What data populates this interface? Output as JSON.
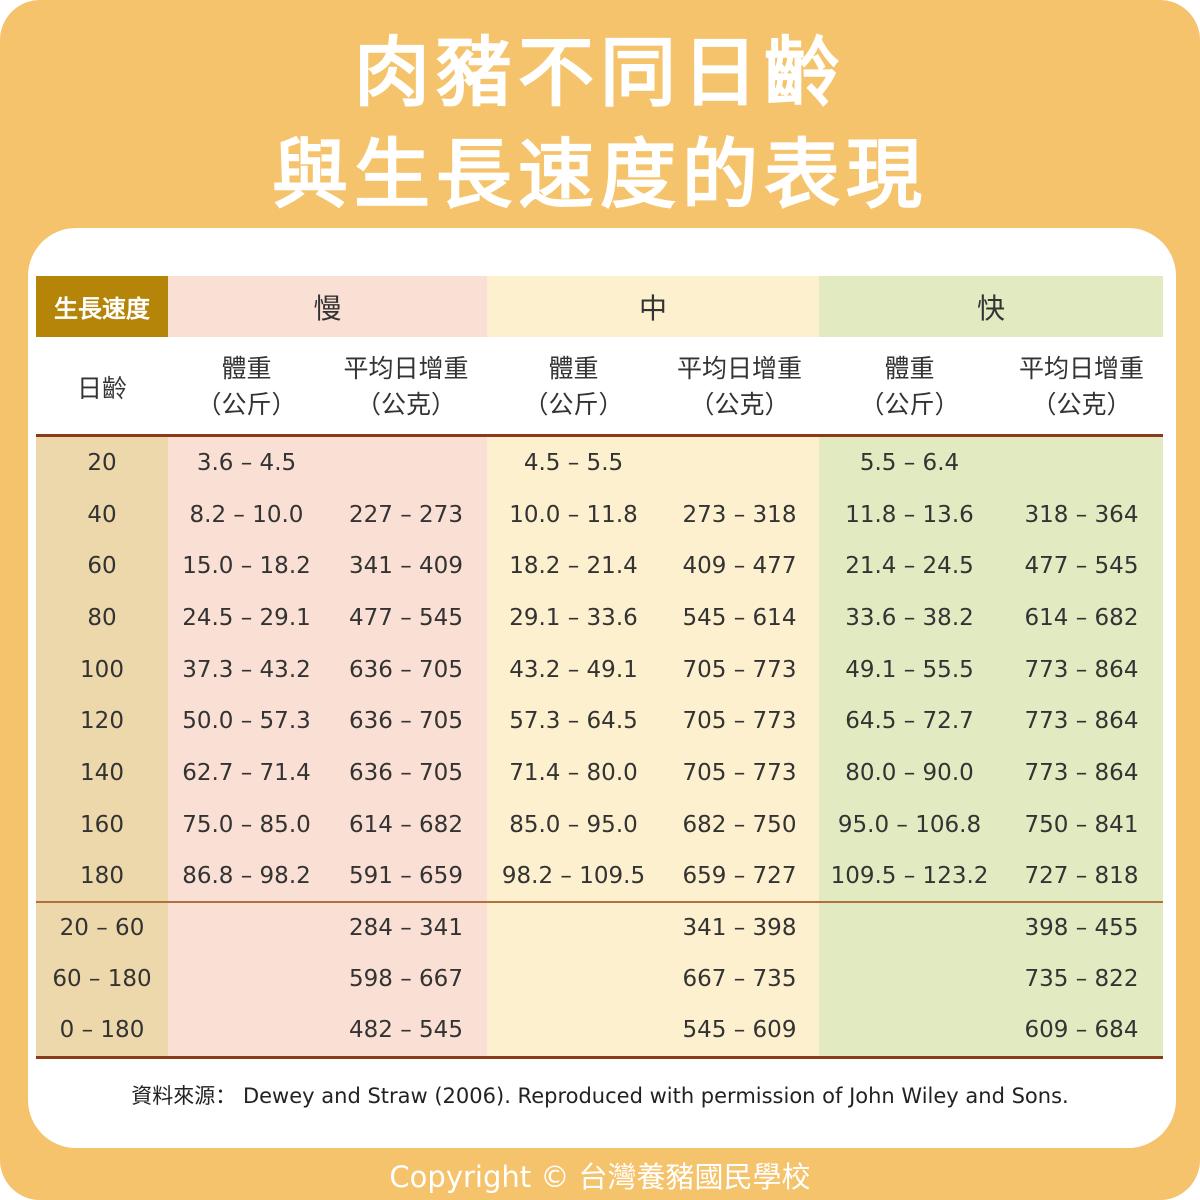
{
  "title": {
    "line1": "肉豬不同日齡",
    "line2": "與生長速度的表現"
  },
  "colors": {
    "frame": "#f5c36b",
    "badge": "#b5850a",
    "age_column": "#edd8ac",
    "slow": "#fae0d4",
    "medium": "#fdf0cf",
    "fast": "#e2eac2",
    "rule": "#8b3a1a"
  },
  "table": {
    "growth_rate_label": "生長速度",
    "groups": [
      "慢",
      "中",
      "快"
    ],
    "age_header": "日齡",
    "weight_header": {
      "line1": "體重",
      "line2": "（公斤）"
    },
    "gain_header": {
      "line1": "平均日增重",
      "line2": "（公克）"
    },
    "rows": [
      {
        "age": "20",
        "cells": [
          "3.6 – 4.5",
          "",
          "4.5 – 5.5",
          "",
          "5.5 – 6.4",
          ""
        ]
      },
      {
        "age": "40",
        "cells": [
          "8.2 – 10.0",
          "227 – 273",
          "10.0 – 11.8",
          "273 – 318",
          "11.8 – 13.6",
          "318 – 364"
        ]
      },
      {
        "age": "60",
        "cells": [
          "15.0 – 18.2",
          "341 – 409",
          "18.2 – 21.4",
          "409 – 477",
          "21.4 – 24.5",
          "477 – 545"
        ]
      },
      {
        "age": "80",
        "cells": [
          "24.5 – 29.1",
          "477 – 545",
          "29.1 – 33.6",
          "545 – 614",
          "33.6 – 38.2",
          "614 – 682"
        ]
      },
      {
        "age": "100",
        "cells": [
          "37.3 – 43.2",
          "636 – 705",
          "43.2 – 49.1",
          "705 – 773",
          "49.1 – 55.5",
          "773 – 864"
        ]
      },
      {
        "age": "120",
        "cells": [
          "50.0 – 57.3",
          "636 – 705",
          "57.3 – 64.5",
          "705 – 773",
          "64.5 – 72.7",
          "773 – 864"
        ]
      },
      {
        "age": "140",
        "cells": [
          "62.7 – 71.4",
          "636 – 705",
          "71.4 – 80.0",
          "705 – 773",
          "80.0 – 90.0",
          "773 – 864"
        ]
      },
      {
        "age": "160",
        "cells": [
          "75.0 – 85.0",
          "614 – 682",
          "85.0 – 95.0",
          "682 – 750",
          "95.0 – 106.8",
          "750 – 841"
        ]
      },
      {
        "age": "180",
        "cells": [
          "86.8 – 98.2",
          "591 – 659",
          "98.2 – 109.5",
          "659 – 727",
          "109.5 – 123.2",
          "727 – 818"
        ]
      }
    ],
    "summary_rows": [
      {
        "age": "20 – 60",
        "cells": [
          "",
          "284 – 341",
          "",
          "341 – 398",
          "",
          "398 – 455"
        ]
      },
      {
        "age": "60 – 180",
        "cells": [
          "",
          "598 – 667",
          "",
          "667 – 735",
          "",
          "735 – 822"
        ]
      },
      {
        "age": "0 – 180",
        "cells": [
          "",
          "482 – 545",
          "",
          "545 – 609",
          "",
          "609 – 684"
        ]
      }
    ]
  },
  "source": "資料來源： Dewey and Straw (2006). Reproduced with permission of John Wiley and Sons.",
  "copyright": "Copyright © 台灣養豬國民學校"
}
